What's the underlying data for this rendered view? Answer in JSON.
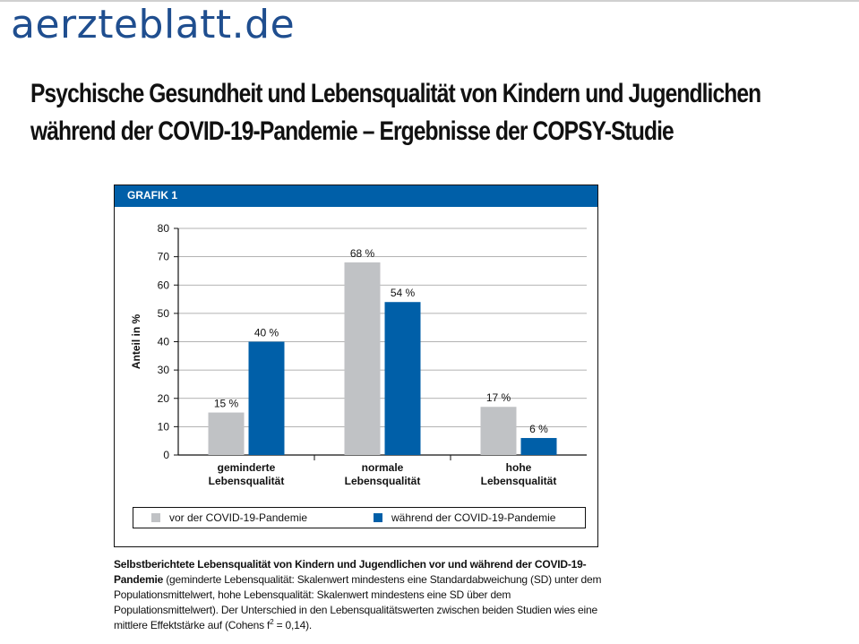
{
  "site": {
    "logo": "aerzteblatt.de"
  },
  "headline": "Psychische Gesundheit und Lebensqualität von Kindern und Jugendlichen während der COVID-19-Pandemie – Ergebnisse der COPSY-Studie",
  "figure": {
    "label": "GRAFIK 1"
  },
  "chart_data": {
    "type": "bar",
    "title": "",
    "xlabel": "",
    "ylabel": "Anteil in %",
    "ylim": [
      0,
      80
    ],
    "yticks": [
      0,
      10,
      20,
      30,
      40,
      50,
      60,
      70,
      80
    ],
    "grid": true,
    "categories": [
      [
        "geminderte",
        "Lebensqualität"
      ],
      [
        "normale",
        "Lebensqualität"
      ],
      [
        "hohe",
        "Lebensqualität"
      ]
    ],
    "series": [
      {
        "name": "vor der COVID-19-Pandemie",
        "color": "#c0c2c5",
        "values": [
          15,
          68,
          17
        ],
        "labels": [
          "15 %",
          "68 %",
          "17 %"
        ]
      },
      {
        "name": "während der COVID-19-Pandemie",
        "color": "#005fa8",
        "values": [
          40,
          54,
          6
        ],
        "labels": [
          "40 %",
          "54 %",
          "6 %"
        ]
      }
    ],
    "legend_position": "bottom"
  },
  "caption": {
    "bold": "Selbstberichtete Lebensqualität von Kindern und Jugendlichen vor und während der COVID-19-Pandemie",
    "text_before_sup": " (geminderte Lebensqualität: Skalenwert mindestens eine Standardabweichung (SD) unter dem Populationsmittelwert, hohe Lebensqualität: Skalenwert mindestens eine SD über dem Populationsmittelwert). Der Unterschied in den Lebensqualitätswerten zwischen beiden Studien wies eine mittlere Effektstärke auf (Cohens f",
    "sup": "2",
    "text_after_sup": " = 0,14)."
  }
}
